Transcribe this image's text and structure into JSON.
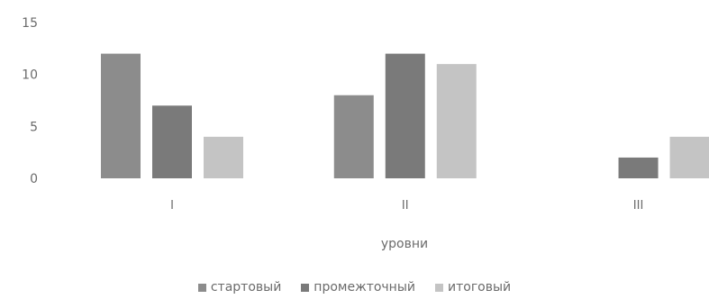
{
  "chart_data": {
    "type": "bar",
    "categories": [
      "I",
      "II",
      "III"
    ],
    "series": [
      {
        "name": "стартовый",
        "values": [
          12,
          8,
          0
        ],
        "color": "#8c8c8c"
      },
      {
        "name": "промежточный",
        "values": [
          7,
          12,
          2
        ],
        "color": "#7a7a7a"
      },
      {
        "name": "итоговый",
        "values": [
          4,
          11,
          4
        ],
        "color": "#c4c4c4"
      }
    ],
    "title": "",
    "xlabel": "уровни",
    "ylabel": "",
    "ylim": [
      0,
      15
    ],
    "yticks": [
      0,
      5,
      10,
      15
    ],
    "grid": false,
    "legend_position": "bottom"
  }
}
